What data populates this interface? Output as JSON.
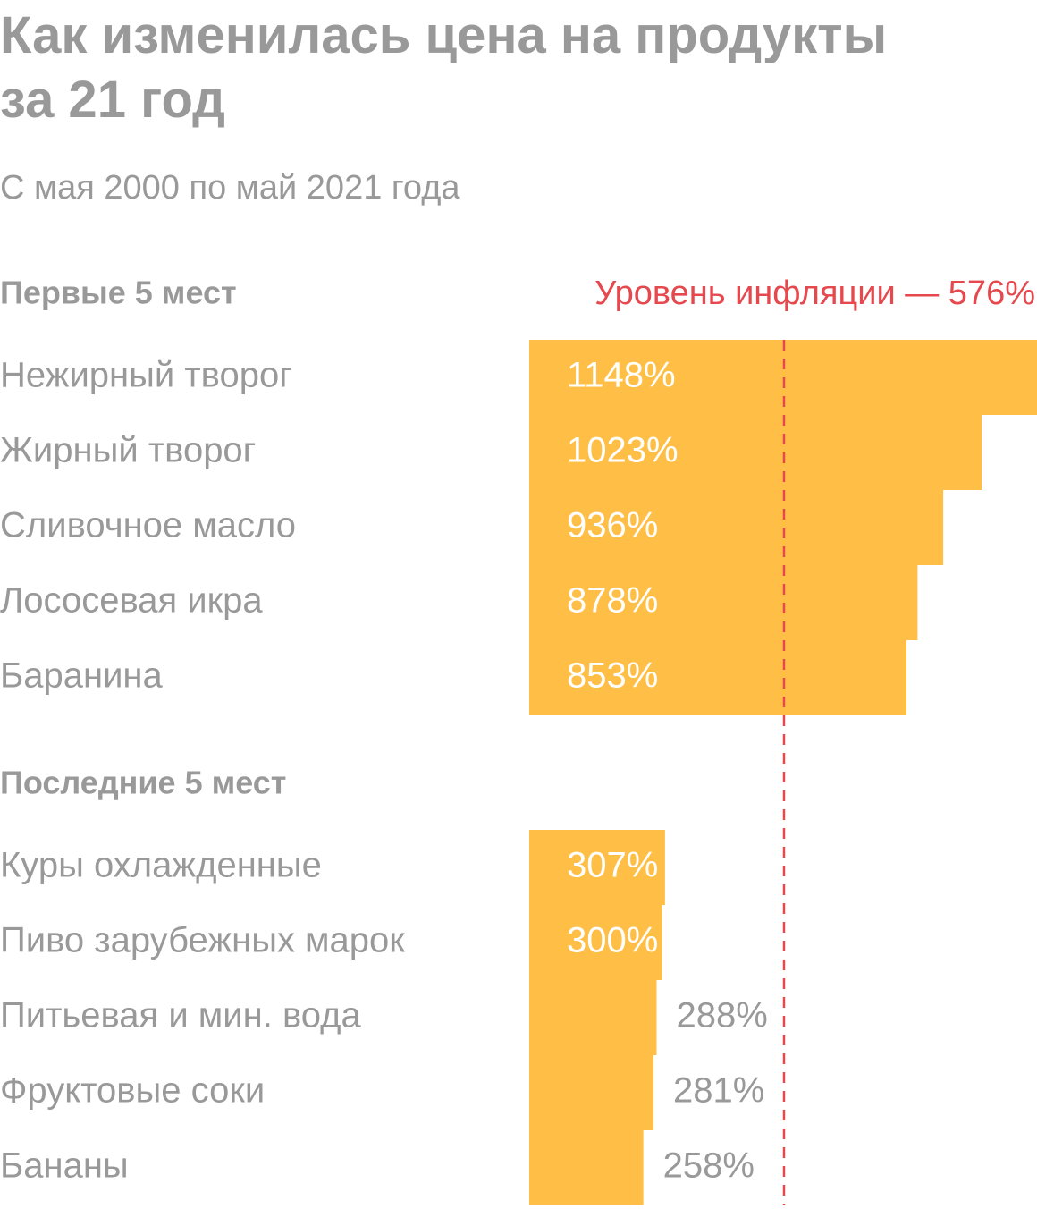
{
  "chart_data": {
    "type": "bar",
    "title": "Как изменилась цена на продукты за 21 год",
    "subtitle": "С мая 2000 по май 2021 года",
    "color": "#ffbf47",
    "inflation": {
      "label": "Уровень инфляции — 576%",
      "value": 576,
      "color": "#e5484d"
    },
    "groups": [
      {
        "name": "Первые 5 мест",
        "categories": [
          "Нежирный творог",
          "Жирный творог",
          "Сливочное масло",
          "Лососевая икра",
          "Баранина"
        ],
        "values": [
          1148,
          1023,
          936,
          878,
          853
        ],
        "value_labels": [
          "1148%",
          "1023%",
          "936%",
          "878%",
          "853%"
        ]
      },
      {
        "name": "Последние 5 мест",
        "categories": [
          "Куры охлажденные",
          "Пиво зарубежных марок",
          "Питьевая и мин. вода",
          "Фруктовые соки",
          "Бананы"
        ],
        "values": [
          307,
          300,
          288,
          281,
          258
        ],
        "value_labels": [
          "307%",
          "300%",
          "288%",
          "281%",
          "258%"
        ]
      }
    ]
  }
}
